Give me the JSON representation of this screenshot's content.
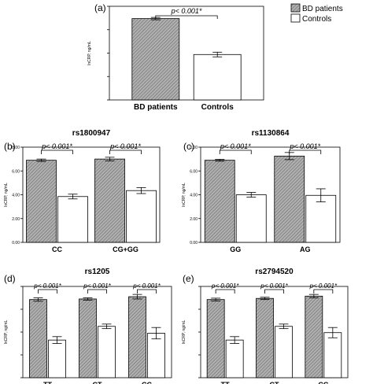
{
  "legend": {
    "items": [
      {
        "label": "BD patients",
        "pattern": "hatched-gray"
      },
      {
        "label": "Controls",
        "pattern": "white"
      }
    ]
  },
  "colors": {
    "bd_fill": "#a9a9a9",
    "control_fill": "#ffffff",
    "stroke": "#000000"
  },
  "chart_data": [
    {
      "panel_label": "(a)",
      "type": "bar",
      "title": "",
      "ylabel": "lnCRP, ng/mL",
      "ylim": [
        0,
        8
      ],
      "yticks": [
        "0.00",
        "2.00",
        "4.00",
        "6.00",
        "8.00"
      ],
      "show_ytick_labels": false,
      "categories": [
        "BD patients",
        "Controls"
      ],
      "series": [
        {
          "name": "",
          "values": [
            6.95,
            3.88
          ],
          "err": [
            0.1,
            0.2
          ]
        }
      ],
      "annotations": [
        {
          "text": "p< 0.001*",
          "from": 0,
          "to": 1
        }
      ]
    },
    {
      "panel_label": "(b)",
      "type": "bar",
      "title": "rs1800947",
      "ylabel": "lnCRP, ng/mL",
      "ylim": [
        0,
        8
      ],
      "yticks": [
        "0.00",
        "2.00",
        "4.00",
        "6.00",
        "8.00"
      ],
      "show_ytick_labels": true,
      "categories": [
        "CC",
        "CG+GG"
      ],
      "series": [
        {
          "name": "BD patients",
          "values": [
            6.9,
            7.0
          ],
          "err": [
            0.1,
            0.15
          ]
        },
        {
          "name": "Controls",
          "values": [
            3.85,
            4.35
          ],
          "err": [
            0.2,
            0.25
          ]
        }
      ],
      "annotations": [
        {
          "text": "p< 0.001*",
          "category": 0
        },
        {
          "text": "p< 0.001*",
          "category": 1
        }
      ]
    },
    {
      "panel_label": "(c)",
      "type": "bar",
      "title": "rs1130864",
      "ylabel": "lnCRP, ng/mL",
      "ylim": [
        0,
        8
      ],
      "yticks": [
        "0.00",
        "2.00",
        "4.00",
        "6.00",
        "8.00"
      ],
      "show_ytick_labels": true,
      "categories": [
        "GG",
        "AG"
      ],
      "series": [
        {
          "name": "BD patients",
          "values": [
            6.9,
            7.25
          ],
          "err": [
            0.08,
            0.3
          ]
        },
        {
          "name": "Controls",
          "values": [
            4.0,
            3.95
          ],
          "err": [
            0.2,
            0.55
          ]
        }
      ],
      "annotations": [
        {
          "text": "p< 0.001*",
          "category": 0
        },
        {
          "text": "p< 0.001*",
          "category": 1
        }
      ]
    },
    {
      "panel_label": "(d)",
      "type": "bar",
      "title": "rs1205",
      "ylabel": "lnCRP, ng/mL",
      "ylim": [
        0,
        8
      ],
      "yticks": [
        "0.00",
        "2.00",
        "4.00",
        "6.00",
        "8.00"
      ],
      "show_ytick_labels": false,
      "categories": [
        "TT",
        "CT",
        "CC"
      ],
      "series": [
        {
          "name": "BD patients",
          "values": [
            6.85,
            6.9,
            7.1
          ],
          "err": [
            0.15,
            0.1,
            0.2
          ]
        },
        {
          "name": "Controls",
          "values": [
            3.3,
            4.5,
            3.9
          ],
          "err": [
            0.3,
            0.2,
            0.5
          ]
        }
      ],
      "annotations": [
        {
          "text": "p< 0.001*",
          "category": 0
        },
        {
          "text": "p< 0.001*",
          "category": 1
        },
        {
          "text": "p< 0.001*",
          "category": 2
        }
      ]
    },
    {
      "panel_label": "(e)",
      "type": "bar",
      "title": "rs2794520",
      "ylabel": "lnCRP, ng/mL",
      "ylim": [
        0,
        8
      ],
      "yticks": [
        "0.00",
        "2.00",
        "4.00",
        "6.00",
        "8.00"
      ],
      "show_ytick_labels": false,
      "categories": [
        "TT",
        "CT",
        "CC"
      ],
      "series": [
        {
          "name": "BD patients",
          "values": [
            6.85,
            6.95,
            7.15
          ],
          "err": [
            0.12,
            0.1,
            0.15
          ]
        },
        {
          "name": "Controls",
          "values": [
            3.3,
            4.5,
            3.95
          ],
          "err": [
            0.3,
            0.2,
            0.45
          ]
        }
      ],
      "annotations": [
        {
          "text": "p< 0.001*",
          "category": 0
        },
        {
          "text": "p< 0.001*",
          "category": 1
        },
        {
          "text": "p< 0.001*",
          "category": 2
        }
      ]
    }
  ]
}
